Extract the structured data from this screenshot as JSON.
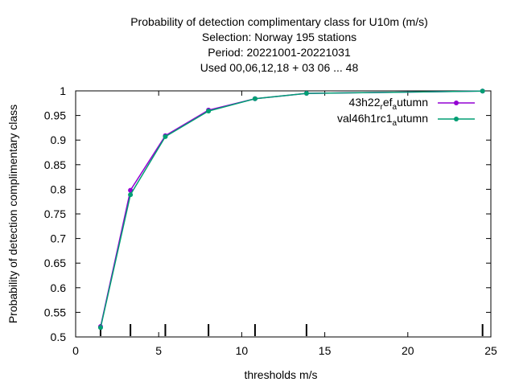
{
  "chart_data": {
    "type": "line",
    "title_lines": [
      "Probability of detection complimentary class  for U10m (m/s)",
      "Selection: Norway    195 stations",
      "Period: 20221001-20221031",
      "Used  00,06,12,18  + 03 06 ... 48"
    ],
    "xlabel": "thresholds m/s",
    "ylabel": "Probability of detection complimentary class",
    "xlim": [
      0,
      25
    ],
    "ylim": [
      0.5,
      1
    ],
    "xticks": [
      "0",
      "5",
      "10",
      "15",
      "20",
      "25"
    ],
    "yticks": [
      "0.5",
      "0.55",
      "0.6",
      "0.65",
      "0.7",
      "0.75",
      "0.8",
      "0.85",
      "0.9",
      "0.95",
      "1"
    ],
    "grid": false,
    "legend_position": "top-right",
    "threshold_marks": [
      1.5,
      3.3,
      5.4,
      8.0,
      10.8,
      13.9,
      24.5
    ],
    "series": [
      {
        "legend_main": "43h22",
        "legend_sub1": "r",
        "legend_mid": "ef",
        "legend_sub2": "a",
        "legend_tail": "utumn",
        "color": "#9400d3",
        "x": [
          1.5,
          3.3,
          5.4,
          8.0,
          10.8,
          13.9,
          24.5
        ],
        "y": [
          0.521,
          0.798,
          0.909,
          0.961,
          0.984,
          0.995,
          0.9995
        ]
      },
      {
        "legend_main": "val46h1rc1",
        "legend_sub1": "",
        "legend_mid": "",
        "legend_sub2": "a",
        "legend_tail": "utumn",
        "color": "#009e73",
        "x": [
          1.5,
          3.3,
          5.4,
          8.0,
          10.8,
          13.9,
          24.5
        ],
        "y": [
          0.519,
          0.789,
          0.907,
          0.959,
          0.984,
          0.995,
          0.9995
        ]
      }
    ]
  }
}
